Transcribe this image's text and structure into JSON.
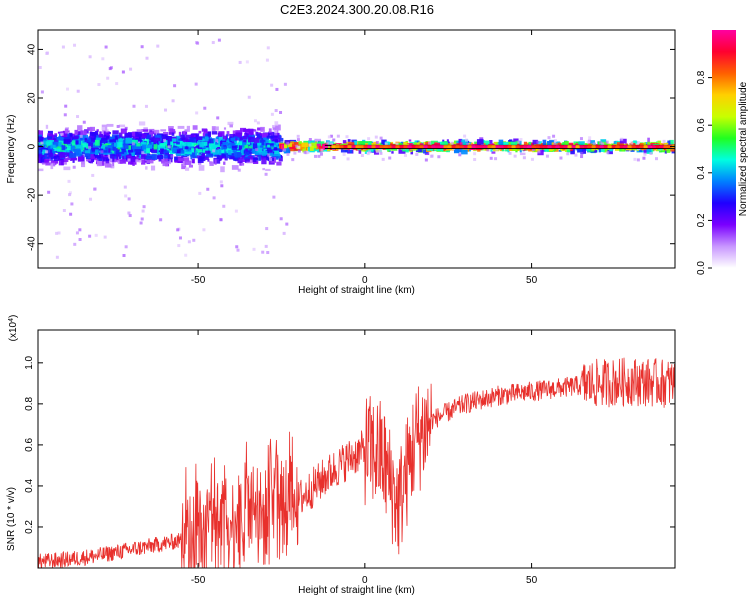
{
  "title": "C2E3.2024.300.20.08.R16",
  "colors": {
    "snr_line": "#e8302c",
    "band_line": "#000000",
    "frame": "#000000"
  },
  "chart_data": [
    {
      "type": "heatmap",
      "xlabel": "Height of straight line (km)",
      "ylabel": "Frequency (Hz)",
      "xlim": [
        -98,
        93
      ],
      "ylim": [
        -50,
        48
      ],
      "x_ticks": [
        -50,
        0,
        50
      ],
      "y_ticks": [
        -40,
        -20,
        0,
        20,
        40
      ],
      "colorbar": {
        "label": "Normalized spectral amplitude",
        "range": [
          0,
          1
        ],
        "ticks": [
          0.0,
          0.2,
          0.4,
          0.6,
          0.8
        ],
        "colormap": [
          "#ffffff",
          "#c896ff",
          "#7a00ff",
          "#2000ff",
          "#0080ff",
          "#00ffe0",
          "#20ff20",
          "#c8ff00",
          "#ffd000",
          "#ff6000",
          "#ff0030",
          "#ff00a0"
        ]
      },
      "segments": [
        {
          "x_range": [
            -98,
            -25
          ],
          "center_freq": 0,
          "spread_hz": 7,
          "peak_amplitude": 0.45
        },
        {
          "x_range": [
            -25,
            93
          ],
          "center_freq": 0,
          "spread_hz": 2,
          "peak_amplitude": 0.95
        }
      ]
    },
    {
      "type": "line",
      "xlabel": "Height of straight line (km)",
      "ylabel": "SNR (10 * v/v)",
      "y_multiplier": "(x10",
      "y_multiplier_exp": "4",
      "xlim": [
        -98,
        93
      ],
      "ylim": [
        0,
        1.16
      ],
      "x_ticks": [
        -50,
        0,
        50
      ],
      "y_ticks": [
        0.2,
        0.4,
        0.6,
        0.8,
        1.0
      ],
      "series": [
        {
          "x": [
            -98,
            -90,
            -80,
            -70,
            -60,
            -50,
            -40,
            -30,
            -25,
            -20,
            -15,
            -10,
            -5,
            0,
            5,
            10,
            15,
            20,
            30,
            40,
            50,
            60,
            70,
            80,
            90,
            93
          ],
          "values": [
            0.03,
            0.04,
            0.06,
            0.09,
            0.12,
            0.15,
            0.2,
            0.24,
            0.28,
            0.33,
            0.4,
            0.47,
            0.53,
            0.58,
            0.55,
            0.3,
            0.62,
            0.72,
            0.8,
            0.84,
            0.86,
            0.88,
            0.9,
            0.91,
            0.9,
            0.9
          ]
        }
      ]
    }
  ]
}
